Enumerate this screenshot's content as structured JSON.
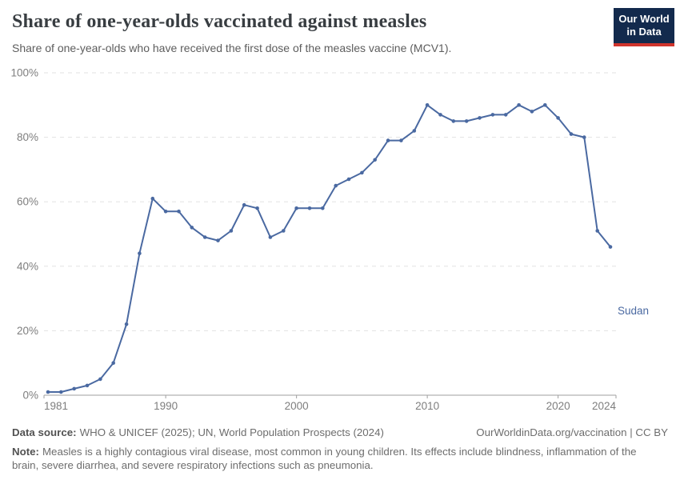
{
  "header": {
    "title": "Share of one-year-olds vaccinated against measles",
    "subtitle": "Share of one-year-olds who have received the first dose of the measles vaccine (MCV1).",
    "logo": {
      "line1": "Our World",
      "line2": "in Data"
    }
  },
  "chart_data": {
    "type": "line",
    "title": "Share of one-year-olds vaccinated against measles",
    "xlabel": "",
    "ylabel": "",
    "xlim": [
      1981,
      2024
    ],
    "ylim": [
      0,
      100
    ],
    "grid": "horizontal-dashed",
    "legend_position": "end-of-line-label",
    "x": [
      1981,
      1982,
      1983,
      1984,
      1985,
      1986,
      1987,
      1988,
      1989,
      1990,
      1991,
      1992,
      1993,
      1994,
      1995,
      1996,
      1997,
      1998,
      1999,
      2000,
      2001,
      2002,
      2003,
      2004,
      2005,
      2006,
      2007,
      2008,
      2009,
      2010,
      2011,
      2012,
      2013,
      2014,
      2015,
      2016,
      2017,
      2018,
      2019,
      2020,
      2021,
      2022,
      2023,
      2024
    ],
    "series": [
      {
        "name": "Sudan",
        "color": "#4a69a1",
        "values": [
          1,
          1,
          2,
          3,
          5,
          10,
          22,
          44,
          61,
          57,
          57,
          52,
          49,
          48,
          51,
          59,
          58,
          49,
          51,
          58,
          58,
          58,
          65,
          67,
          69,
          73,
          79,
          79,
          82,
          90,
          87,
          85,
          85,
          86,
          87,
          87,
          90,
          88,
          90,
          86,
          81,
          80,
          51,
          46
        ]
      }
    ],
    "yticks": [
      {
        "v": 0,
        "label": "0%"
      },
      {
        "v": 20,
        "label": "20%"
      },
      {
        "v": 40,
        "label": "40%"
      },
      {
        "v": 60,
        "label": "60%"
      },
      {
        "v": 80,
        "label": "80%"
      },
      {
        "v": 100,
        "label": "100%"
      }
    ],
    "xticks": [
      {
        "v": 1981,
        "label": "1981"
      },
      {
        "v": 1990,
        "label": "1990"
      },
      {
        "v": 2000,
        "label": "2000"
      },
      {
        "v": 2010,
        "label": "2010"
      },
      {
        "v": 2020,
        "label": "2020"
      },
      {
        "v": 2024,
        "label": "2024"
      }
    ]
  },
  "colors": {
    "line": "#4a69a1",
    "grid": "#e2e2e2",
    "axis": "#9f9f9f",
    "tick_text": "#7e7e7e",
    "logo_bg": "#132a4d",
    "logo_stripe": "#d0342c"
  },
  "footer": {
    "datasource_label": "Data source:",
    "datasource_value": "WHO & UNICEF (2025); UN, World Population Prospects (2024)",
    "link": "OurWorldinData.org/vaccination | CC BY",
    "note_label": "Note:",
    "note_value": "Measles is a highly contagious viral disease, most common in young children. Its effects include blindness, inflammation of the brain, severe diarrhea, and severe respiratory infections such as pneumonia."
  }
}
